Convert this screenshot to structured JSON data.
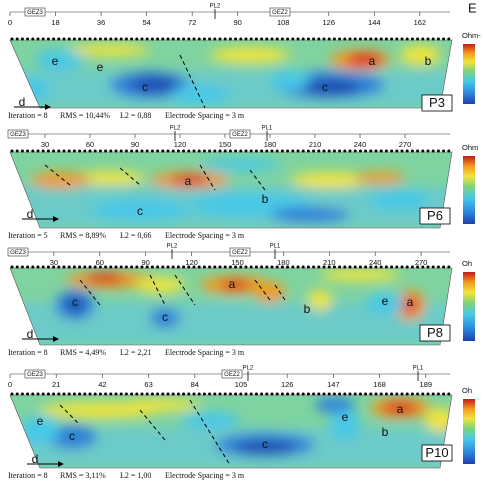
{
  "figure_label": "E",
  "panels": [
    {
      "name": "P3",
      "ticks": [
        0,
        18,
        36,
        54,
        72,
        90,
        108,
        126,
        144,
        162
      ],
      "markers": [
        "GEZ3",
        "PL2",
        "GEZ2"
      ],
      "labels": [
        "e",
        "e",
        "c",
        "c",
        "a",
        "b",
        "d"
      ],
      "footer": [
        "Iteration = 8",
        "RMS = 10,44%",
        "L2 = 0,88",
        "Electrode Spacing = 3 m"
      ],
      "colorbar_title": "Ohm-"
    },
    {
      "name": "P6",
      "ticks": [
        30,
        60,
        90,
        120,
        150,
        180,
        210,
        240,
        270
      ],
      "markers": [
        "GEZ3",
        "PL2",
        "GEZ2",
        "PL1"
      ],
      "labels": [
        "a",
        "b",
        "c",
        "d"
      ],
      "footer": [
        "Iteration = 5",
        "RMS = 8,89%",
        "L2 = 0,66",
        "Electrode Spacing = 3 m"
      ],
      "colorbar_title": "Ohm"
    },
    {
      "name": "P8",
      "ticks": [
        30,
        60,
        90,
        120,
        150,
        180,
        210,
        240,
        270
      ],
      "markers": [
        "GEZ3",
        "PL2",
        "GEZ2",
        "PL1"
      ],
      "labels": [
        "c",
        "c",
        "a",
        "b",
        "e",
        "a",
        "d"
      ],
      "footer": [
        "Iteration = 8",
        "RMS = 4,49%",
        "L2 = 2,21",
        "Electrode Spacing = 3 m"
      ],
      "colorbar_title": "Oh"
    },
    {
      "name": "P10",
      "ticks": [
        0,
        21,
        42,
        63,
        84,
        105,
        126,
        147,
        168,
        189
      ],
      "markers": [
        "GEZ3",
        "GEZ2",
        "PL2",
        "PL1"
      ],
      "labels": [
        "e",
        "c",
        "c",
        "e",
        "a",
        "b",
        "d"
      ],
      "footer": [
        "Iteration = 8",
        "RMS = 3,11%",
        "L2 = 1,00",
        "Electrode Spacing = 3 m"
      ],
      "colorbar_title": "Oh"
    }
  ]
}
